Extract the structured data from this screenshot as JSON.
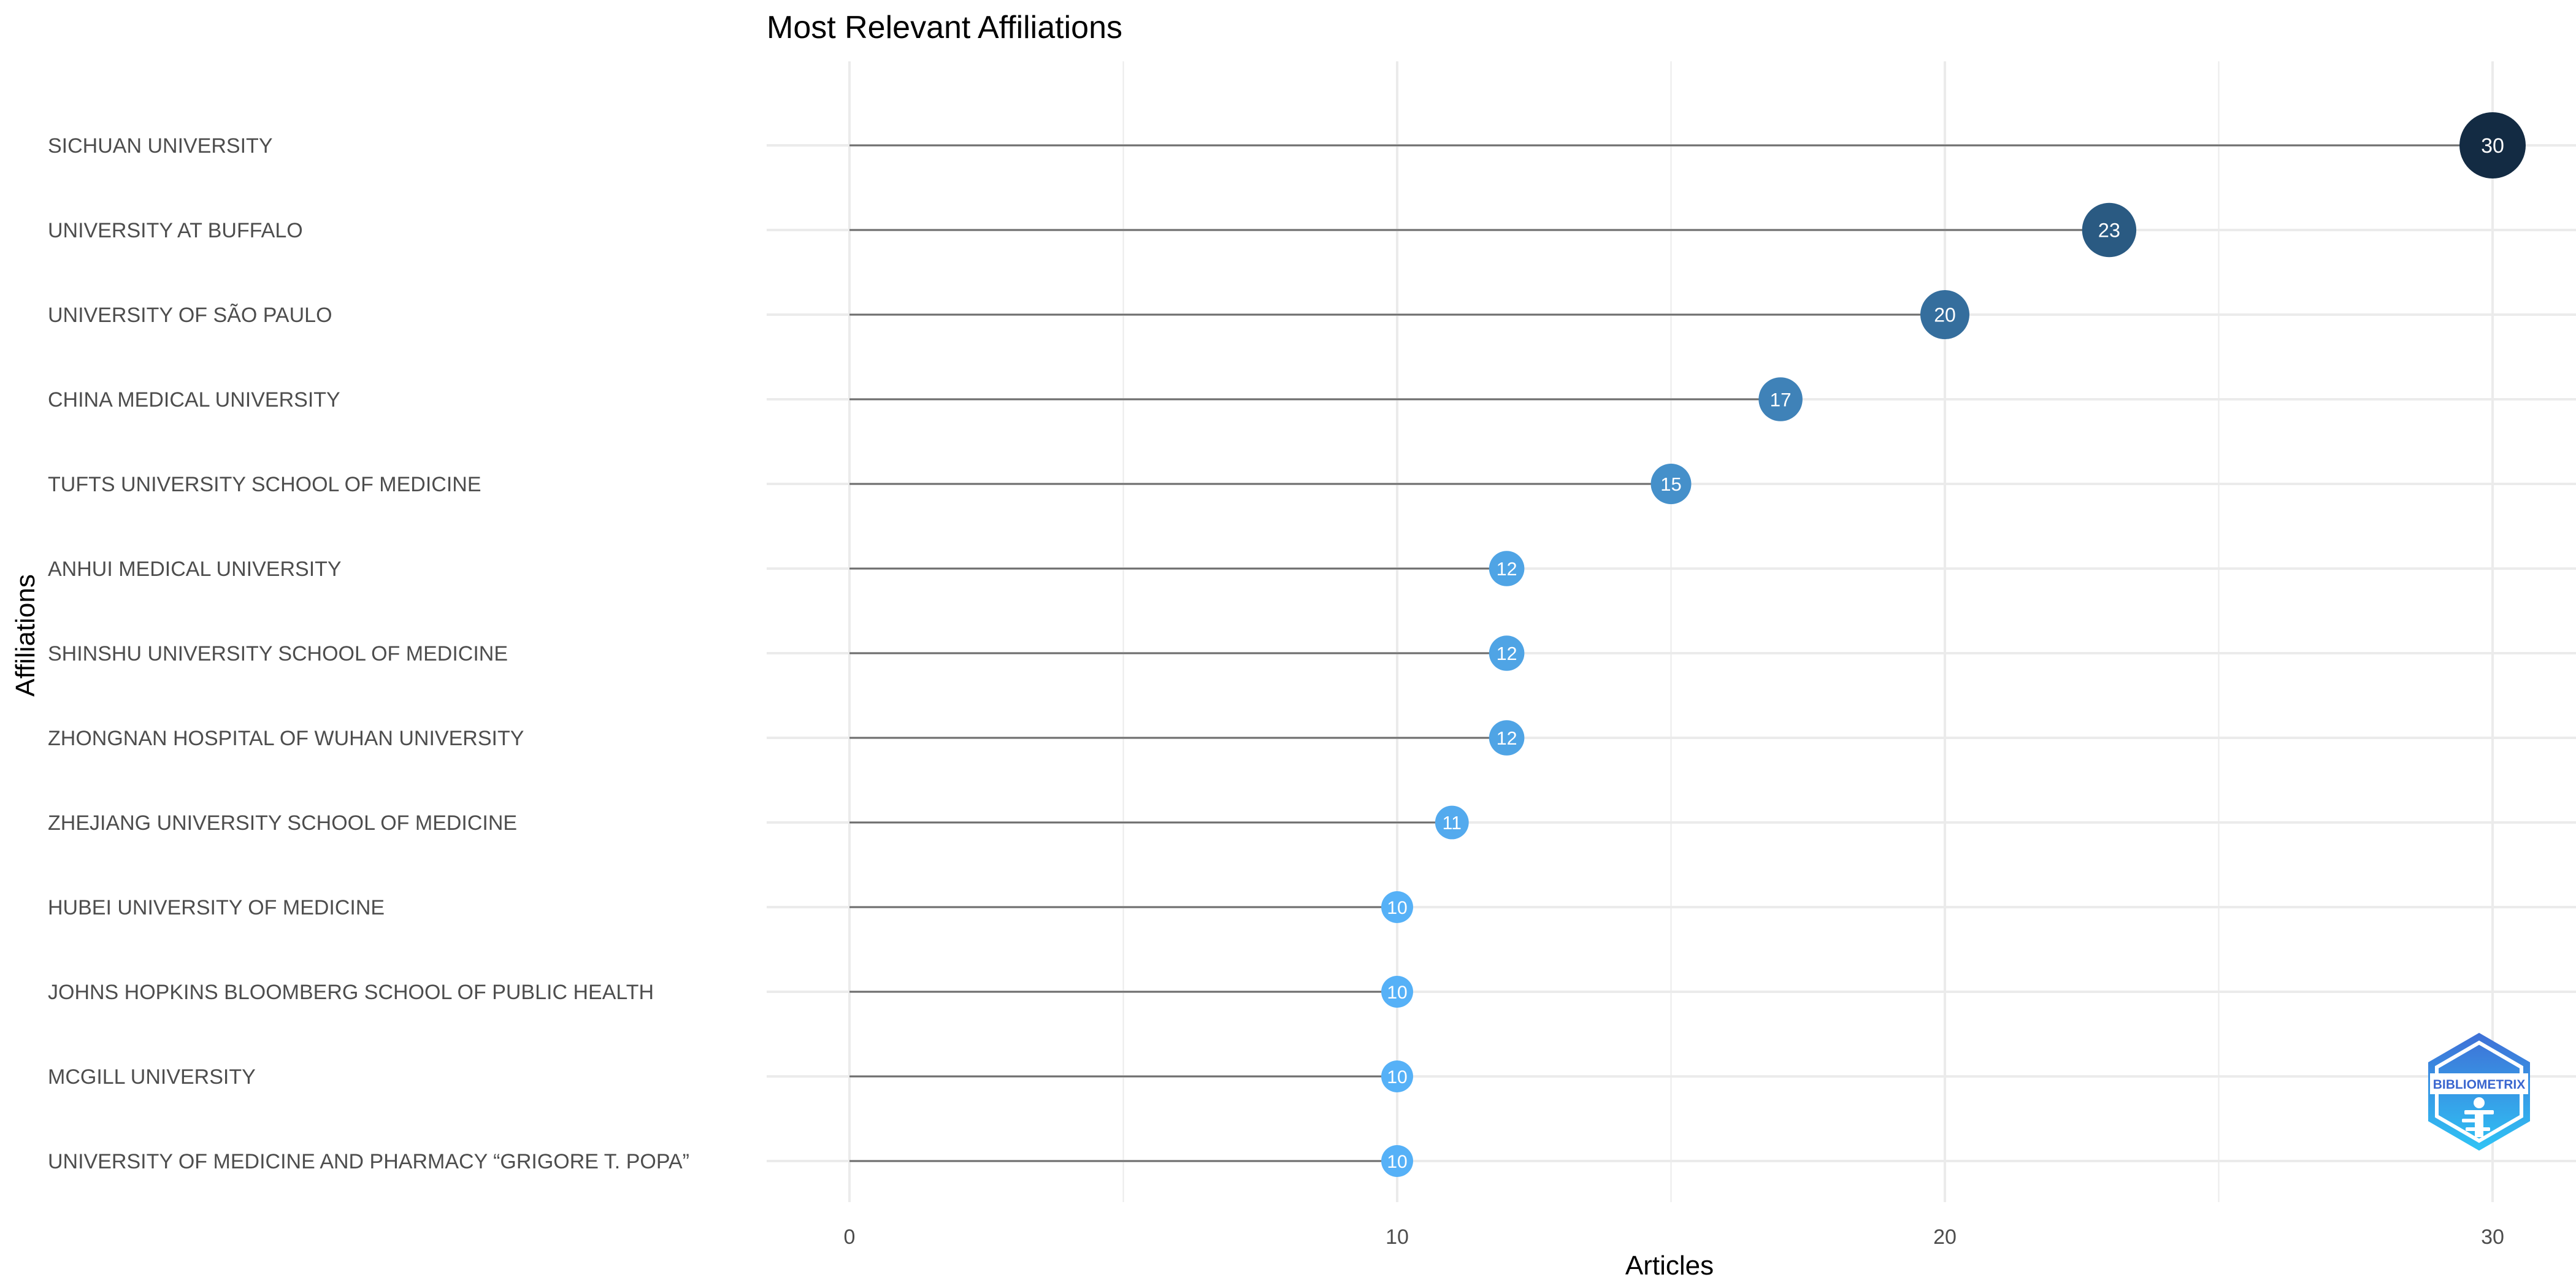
{
  "chart_data": {
    "type": "lollipop",
    "title": "Most Relevant Affiliations",
    "xlabel": "Articles",
    "ylabel": "Affiliations",
    "xlim": [
      0,
      31.5
    ],
    "xticks": [
      0,
      10,
      20,
      30
    ],
    "grid": true,
    "legend": "none",
    "categories": [
      "SICHUAN UNIVERSITY",
      "UNIVERSITY AT BUFFALO",
      "UNIVERSITY OF SÃO PAULO",
      "CHINA MEDICAL UNIVERSITY",
      "TUFTS UNIVERSITY SCHOOL OF MEDICINE",
      "ANHUI MEDICAL UNIVERSITY",
      "SHINSHU UNIVERSITY SCHOOL OF MEDICINE",
      "ZHONGNAN HOSPITAL OF WUHAN UNIVERSITY",
      "ZHEJIANG UNIVERSITY SCHOOL OF MEDICINE",
      "HUBEI UNIVERSITY OF MEDICINE",
      "JOHNS HOPKINS BLOOMBERG SCHOOL OF PUBLIC HEALTH",
      "MCGILL UNIVERSITY",
      "UNIVERSITY OF MEDICINE AND PHARMACY “GRIGORE T. POPA”"
    ],
    "values": [
      30,
      23,
      20,
      17,
      15,
      12,
      12,
      12,
      11,
      10,
      10,
      10,
      10
    ],
    "color_scale": [
      "#56B1F7",
      "#132B43"
    ]
  },
  "logo": {
    "text": "BIBLIOMETRIX"
  }
}
